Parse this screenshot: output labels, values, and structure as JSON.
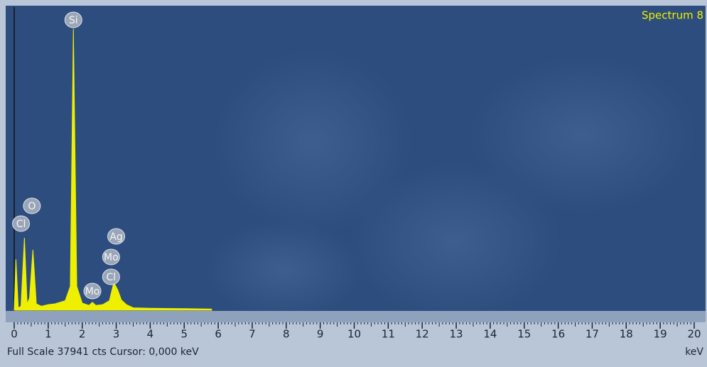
{
  "chart_data": {
    "type": "area",
    "title": "Spectrum 8",
    "footer": "Full Scale 37941 cts  Cursor: 0,000 keV",
    "x_label": "keV",
    "color": "#eef000",
    "x": [
      0.0,
      0.05,
      0.12,
      0.2,
      0.3,
      0.38,
      0.45,
      0.55,
      0.65,
      0.8,
      1.0,
      1.2,
      1.5,
      1.65,
      1.74,
      1.84,
      2.0,
      2.2,
      2.3,
      2.4,
      2.6,
      2.8,
      2.93,
      3.05,
      3.15,
      3.3,
      3.5,
      4.0,
      5.0,
      5.8,
      5.81
    ],
    "values": [
      0,
      6400,
      300,
      500,
      9100,
      800,
      1500,
      7600,
      800,
      500,
      700,
      800,
      1200,
      3000,
      35400,
      3000,
      900,
      600,
      1000,
      600,
      700,
      1200,
      3500,
      2500,
      1300,
      700,
      300,
      250,
      200,
      150,
      0
    ],
    "xlim": [
      0,
      20
    ],
    "xticks": [
      0,
      1,
      2,
      3,
      4,
      5,
      6,
      7,
      8,
      9,
      10,
      11,
      12,
      13,
      14,
      15,
      16,
      17,
      18,
      19,
      20
    ],
    "ylim": [
      0,
      37941
    ],
    "annotations": [
      {
        "label": "Si",
        "x": 1.74
      },
      {
        "label": "O",
        "x": 0.52
      },
      {
        "label": "Cl",
        "x": 0.2
      },
      {
        "label": "Ag",
        "x": 3.0
      },
      {
        "label": "Mo",
        "x": 2.85
      },
      {
        "label": "Mo",
        "x": 2.3
      },
      {
        "label": "Cl",
        "x": 2.85
      }
    ]
  }
}
